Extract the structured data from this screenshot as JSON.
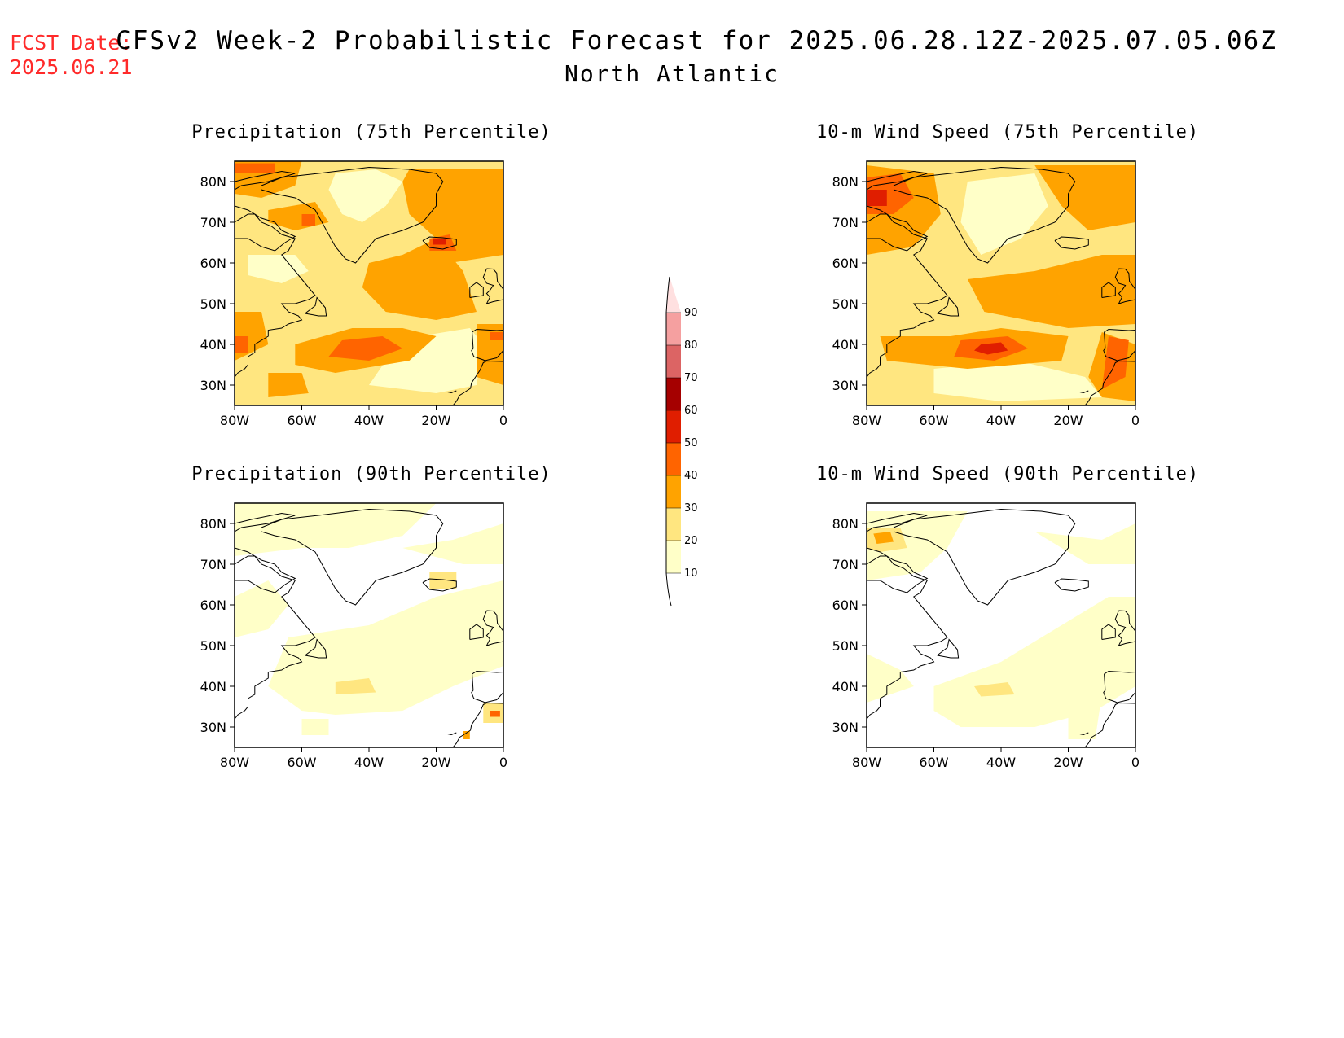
{
  "header": {
    "fcst_label": "FCST Date:",
    "fcst_date": "2025.06.21",
    "title": "CFSv2 Week-2 Probabilistic Forecast for 2025.06.28.12Z-2025.07.05.06Z",
    "subtitle": "North Atlantic"
  },
  "colors": {
    "fcst_text": "#ff2a2a",
    "bins": [
      "#ffffc8",
      "#ffe680",
      "#ffa300",
      "#ff6400",
      "#e01e00",
      "#a50000",
      "#dc6464",
      "#f5a0a0",
      "#ffe0e0"
    ]
  },
  "axes": {
    "lat_labels": [
      "80N",
      "70N",
      "60N",
      "50N",
      "40N",
      "30N"
    ],
    "lon_labels": [
      "80W",
      "60W",
      "40W",
      "20W",
      "0"
    ]
  },
  "panels": [
    {
      "title": "Precipitation (75th Percentile)"
    },
    {
      "title": "10-m Wind Speed (75th Percentile)"
    },
    {
      "title": "Precipitation (90th Percentile)"
    },
    {
      "title": "10-m Wind Speed (90th Percentile)"
    }
  ],
  "colorbar": {
    "levels": [
      "90",
      "80",
      "70",
      "60",
      "50",
      "40",
      "30",
      "20",
      "10"
    ]
  }
}
